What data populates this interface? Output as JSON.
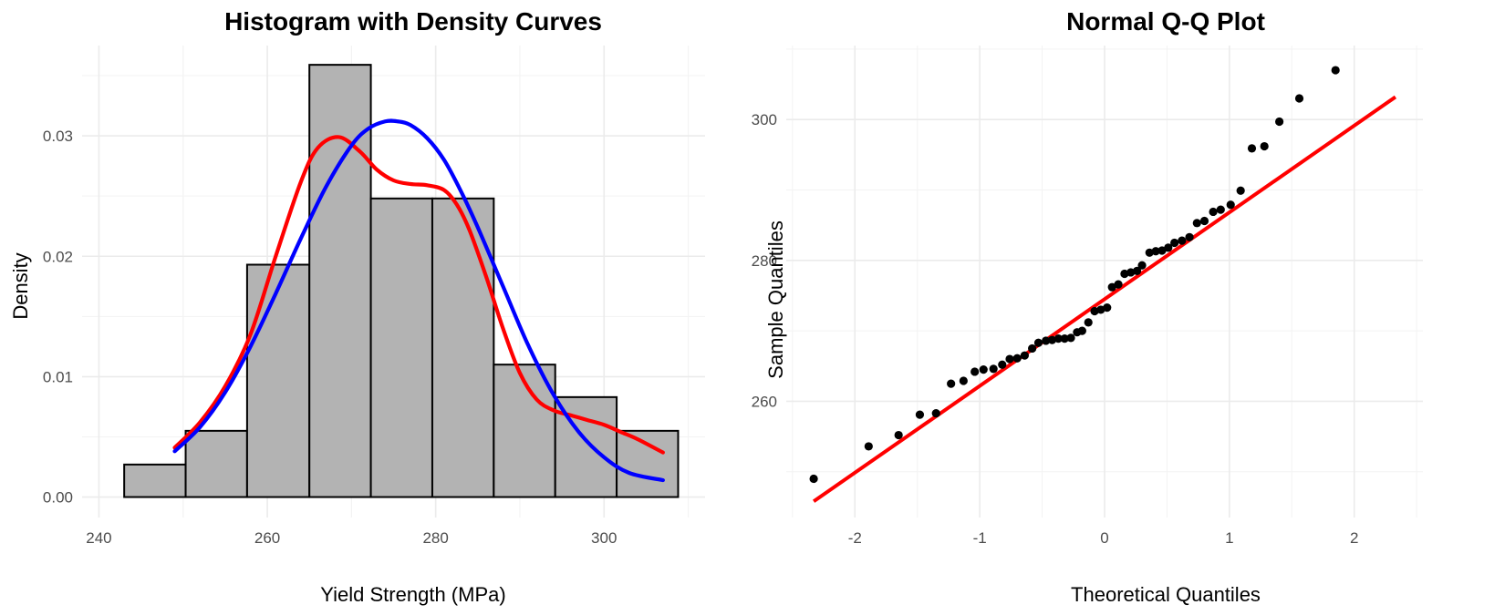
{
  "chart_data": [
    {
      "type": "histogram",
      "title": "Histogram with Density Curves",
      "xlabel": "Yield Strength (MPa)",
      "ylabel": "Density",
      "xlim": [
        238,
        312
      ],
      "ylim": [
        -0.0017,
        0.0375
      ],
      "x_ticks": [
        240,
        260,
        280,
        300
      ],
      "x_tick_labels": [
        "240",
        "260",
        "280",
        "300"
      ],
      "y_ticks": [
        0,
        0.01,
        0.02,
        0.03
      ],
      "y_tick_labels": [
        "0.00",
        "0.01",
        "0.02",
        "0.03"
      ],
      "grid": true,
      "bar_color": "#b3b3b3",
      "bar_outline": "#000000",
      "bins": [
        {
          "x0": 243.0,
          "x1": 250.3,
          "density": 0.0027
        },
        {
          "x0": 250.3,
          "x1": 257.6,
          "density": 0.0055
        },
        {
          "x0": 257.6,
          "x1": 265.0,
          "density": 0.0193
        },
        {
          "x0": 265.0,
          "x1": 272.3,
          "density": 0.0359
        },
        {
          "x0": 272.3,
          "x1": 279.6,
          "density": 0.0248
        },
        {
          "x0": 279.6,
          "x1": 286.9,
          "density": 0.0248
        },
        {
          "x0": 286.9,
          "x1": 294.2,
          "density": 0.011
        },
        {
          "x0": 294.2,
          "x1": 301.5,
          "density": 0.0083
        },
        {
          "x0": 301.5,
          "x1": 308.8,
          "density": 0.0055
        }
      ],
      "series": [
        {
          "color": "#ff0000",
          "x": [
            249.0,
            252.0,
            255.0,
            258.0,
            261.0,
            264.0,
            266.0,
            268.5,
            271.0,
            273.0,
            275.0,
            277.0,
            279.0,
            281.0,
            282.5,
            284.0,
            286.0,
            288.0,
            290.0,
            292.0,
            294.0,
            296.0,
            298.0,
            300.0,
            302.0,
            304.0,
            307.0
          ],
          "y": [
            0.0041,
            0.0062,
            0.0092,
            0.0135,
            0.02,
            0.0262,
            0.029,
            0.0299,
            0.0287,
            0.0272,
            0.0263,
            0.026,
            0.0259,
            0.0255,
            0.0243,
            0.0222,
            0.0183,
            0.014,
            0.0103,
            0.0081,
            0.0072,
            0.0068,
            0.0064,
            0.006,
            0.0054,
            0.0048,
            0.0037
          ]
        },
        {
          "color": "#0000ff",
          "x": [
            249.0,
            252.0,
            255.0,
            258.0,
            261.0,
            264.0,
            267.0,
            270.0,
            272.0,
            274.0,
            275.5,
            277.0,
            279.0,
            281.0,
            283.0,
            285.0,
            288.0,
            291.0,
            294.0,
            297.0,
            300.0,
            303.0,
            307.0
          ],
          "y": [
            0.0038,
            0.0058,
            0.0087,
            0.0125,
            0.0169,
            0.0215,
            0.0258,
            0.0292,
            0.0306,
            0.0312,
            0.0312,
            0.0309,
            0.0298,
            0.028,
            0.0254,
            0.0224,
            0.0175,
            0.0126,
            0.0085,
            0.0054,
            0.0033,
            0.002,
            0.0014
          ]
        }
      ]
    },
    {
      "type": "scatter",
      "title": "Normal Q-Q Plot",
      "xlabel": "Theoretical Quantiles",
      "ylabel": "Sample Quantiles",
      "xlim": [
        -2.55,
        2.55
      ],
      "ylim": [
        243.5,
        310.5
      ],
      "x_ticks": [
        -2,
        -1,
        0,
        1,
        2
      ],
      "x_tick_labels": [
        "-2",
        "-1",
        "0",
        "1",
        "2"
      ],
      "y_ticks": [
        260,
        280,
        300
      ],
      "y_tick_labels": [
        "260",
        "280",
        "300"
      ],
      "grid": true,
      "point_color": "#000000",
      "line_color": "#ff0000",
      "reference_line": {
        "x": [
          -2.33,
          2.33
        ],
        "y": [
          245.8,
          303.2
        ]
      },
      "points": [
        [
          -2.33,
          249.0
        ],
        [
          -1.89,
          253.6
        ],
        [
          -1.65,
          255.2
        ],
        [
          -1.48,
          258.1
        ],
        [
          -1.35,
          258.3
        ],
        [
          -1.23,
          262.5
        ],
        [
          -1.13,
          262.9
        ],
        [
          -1.04,
          264.2
        ],
        [
          -0.97,
          264.5
        ],
        [
          -0.89,
          264.6
        ],
        [
          -0.82,
          265.2
        ],
        [
          -0.76,
          266.0
        ],
        [
          -0.7,
          266.1
        ],
        [
          -0.64,
          266.5
        ],
        [
          -0.58,
          267.5
        ],
        [
          -0.53,
          268.3
        ],
        [
          -0.47,
          268.6
        ],
        [
          -0.42,
          268.7
        ],
        [
          -0.37,
          268.9
        ],
        [
          -0.32,
          268.9
        ],
        [
          -0.27,
          269.0
        ],
        [
          -0.22,
          269.8
        ],
        [
          -0.18,
          270.0
        ],
        [
          -0.13,
          271.2
        ],
        [
          -0.08,
          272.8
        ],
        [
          -0.03,
          273.0
        ],
        [
          0.02,
          273.3
        ],
        [
          0.06,
          276.2
        ],
        [
          0.11,
          276.6
        ],
        [
          0.16,
          278.1
        ],
        [
          0.21,
          278.3
        ],
        [
          0.26,
          278.5
        ],
        [
          0.3,
          279.3
        ],
        [
          0.36,
          281.1
        ],
        [
          0.41,
          281.3
        ],
        [
          0.46,
          281.4
        ],
        [
          0.51,
          281.8
        ],
        [
          0.56,
          282.5
        ],
        [
          0.62,
          282.8
        ],
        [
          0.68,
          283.3
        ],
        [
          0.74,
          285.3
        ],
        [
          0.8,
          285.6
        ],
        [
          0.87,
          286.9
        ],
        [
          0.93,
          287.2
        ],
        [
          1.01,
          287.9
        ],
        [
          1.09,
          289.9
        ],
        [
          1.18,
          295.9
        ],
        [
          1.28,
          296.2
        ],
        [
          1.4,
          299.7
        ],
        [
          1.56,
          303.0
        ],
        [
          1.85,
          307.0
        ]
      ]
    }
  ]
}
